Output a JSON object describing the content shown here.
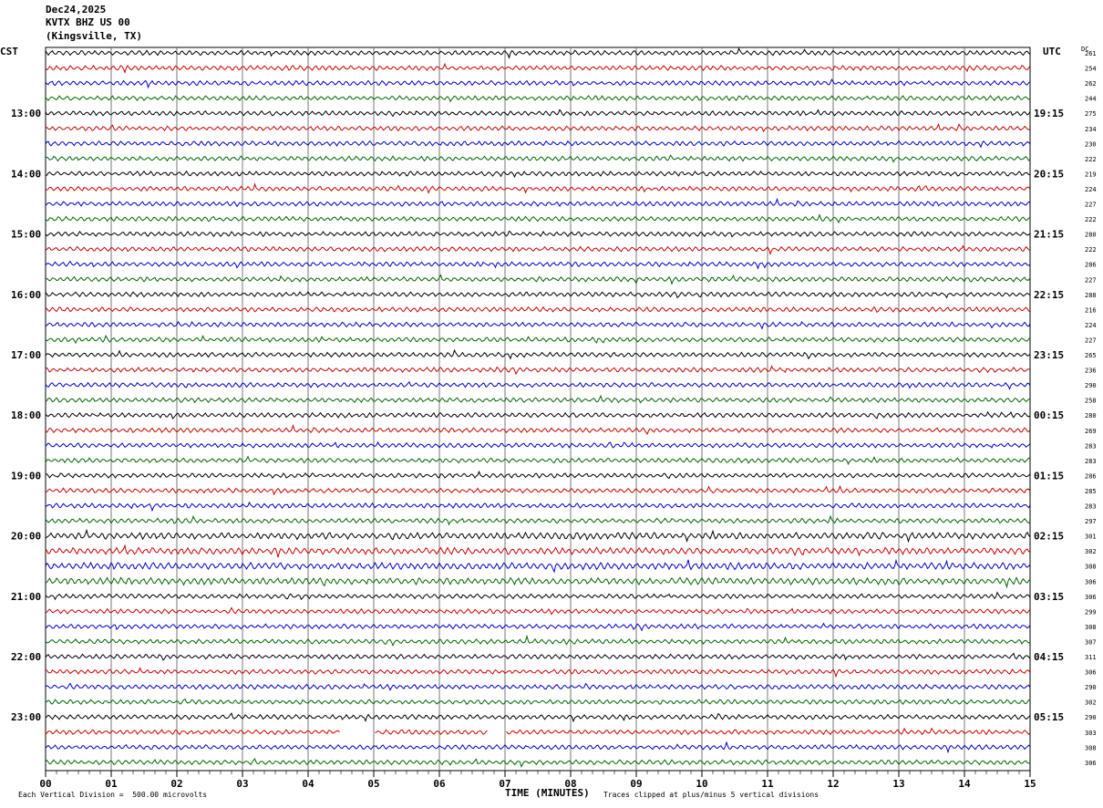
{
  "header": {
    "date": "Dec24,2025",
    "station": "KVTX BHZ US 00",
    "location": "(Kingsville, TX)"
  },
  "left_zone": "CST",
  "right_zone": "UTC",
  "dc_label": "DC",
  "footer": {
    "scale": "Each Vertical Division =  500.00 microvolts",
    "xaxis_title": "TIME (MINUTES)",
    "clip_note": "Traces clipped at plus/minus 5 vertical divisions"
  },
  "colors": {
    "trace_cycle": [
      "#000000",
      "#cc0000",
      "#0000cc",
      "#006600"
    ],
    "grid": "#000000",
    "background": "#ffffff"
  },
  "chart_data": {
    "type": "line",
    "title": "Dec24,2025 KVTX BHZ US 00 (Kingsville, TX)",
    "xlabel": "TIME (MINUTES)",
    "xlim": [
      0,
      15
    ],
    "x_ticks": [
      "00",
      "01",
      "02",
      "03",
      "04",
      "05",
      "06",
      "07",
      "08",
      "09",
      "10",
      "11",
      "12",
      "13",
      "14",
      "15"
    ],
    "rows_per_hour": 4,
    "row_count": 48,
    "left_hour_labels": [
      "13:00",
      "14:00",
      "15:00",
      "16:00",
      "17:00",
      "18:00",
      "19:00",
      "20:00",
      "21:00",
      "22:00",
      "23:00"
    ],
    "right_hour_labels": [
      "19:15",
      "20:15",
      "21:15",
      "22:15",
      "23:15",
      "00:15",
      "01:15",
      "02:15",
      "03:15",
      "04:15",
      "05:15"
    ],
    "hour_label_first_row": 4,
    "dc_offsets": [
      "261",
      "254",
      "262",
      "244",
      "275",
      "234",
      "230",
      "222",
      "219",
      "224",
      "227",
      "222",
      "280",
      "222",
      "286",
      "227",
      "288",
      "216",
      "224",
      "227",
      "265",
      "236",
      "290",
      "258",
      "280",
      "269",
      "283",
      "283",
      "286",
      "285",
      "283",
      "297",
      "301",
      "302",
      "308",
      "306",
      "306",
      "299",
      "308",
      "307",
      "311",
      "306",
      "290",
      "302",
      "290",
      "303",
      "308",
      "306"
    ],
    "gaps": [
      {
        "row": 45,
        "from_min": 4.5,
        "to_min": 5.0
      },
      {
        "row": 45,
        "from_min": 6.75,
        "to_min": 7.0
      }
    ],
    "amplitude_divisions_clip": 5,
    "grid": true
  }
}
